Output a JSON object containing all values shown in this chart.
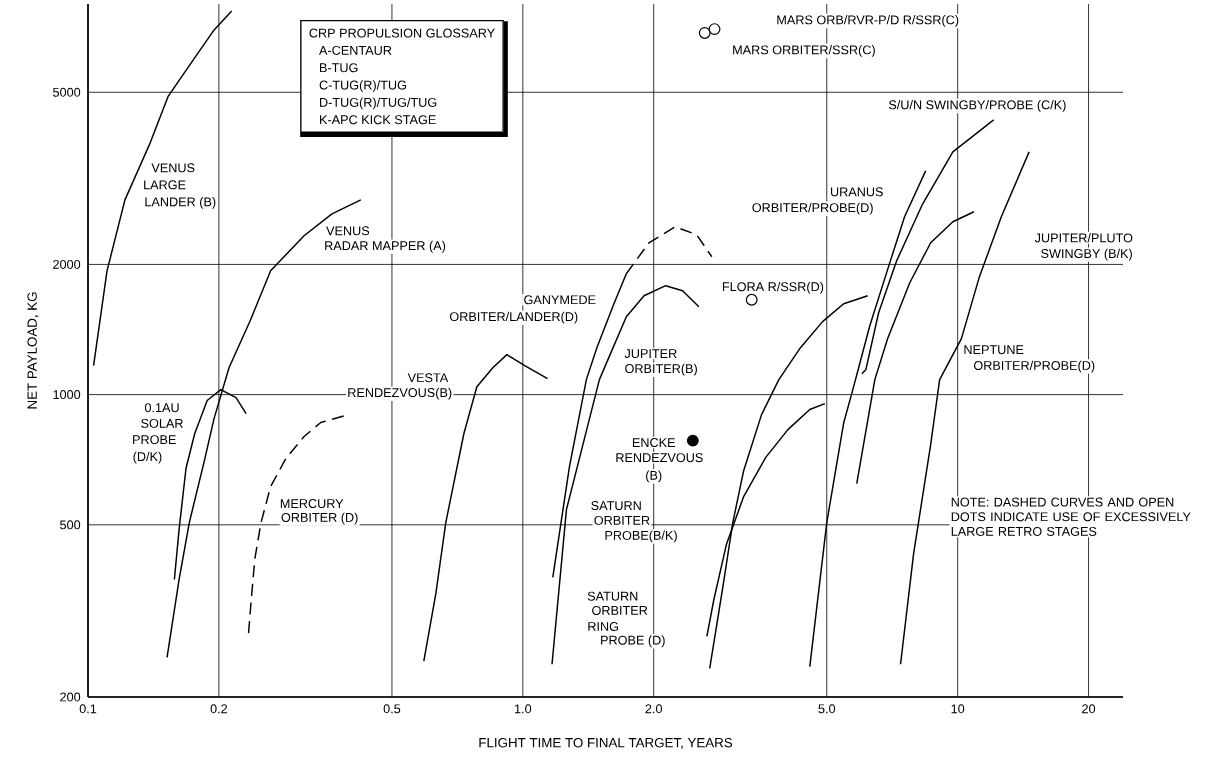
{
  "chart_data": {
    "type": "line",
    "xlabel": "FLIGHT TIME TO FINAL TARGET, YEARS",
    "ylabel": "NET PAYLOAD, KG",
    "log": "xy",
    "grid": true,
    "xlim": [
      0.1,
      24
    ],
    "ylim": [
      200,
      8000
    ],
    "xticks": [
      0.1,
      0.2,
      0.5,
      {
        "value": 1,
        "label": "1.0"
      },
      {
        "value": 2,
        "label": "2.0"
      },
      {
        "value": 5,
        "label": "5.0"
      },
      10,
      20
    ],
    "yticks": [
      200,
      500,
      1000,
      2000,
      5000
    ],
    "series": [
      {
        "color": "#000000",
        "x": [
          0.103,
          0.1106,
          0.1216,
          0.139,
          0.153,
          0.174,
          0.195,
          0.214
        ],
        "values": [
          1167,
          1933,
          2820,
          3820,
          4900,
          5910,
          6970,
          7710
        ]
      },
      {
        "color": "#000000",
        "x": [
          0.152,
          0.162,
          0.171,
          0.185,
          0.195,
          0.211,
          0.236,
          0.263,
          0.314,
          0.364,
          0.424
        ],
        "values": [
          247,
          374,
          506,
          700,
          881,
          1154,
          1482,
          1933,
          2330,
          2618,
          2820
        ]
      },
      {
        "color": "#000000",
        "x": [
          0.158,
          0.162,
          0.168,
          0.176,
          0.188,
          0.202,
          0.219,
          0.231
        ],
        "values": [
          374,
          488,
          675,
          813,
          969,
          1027,
          984,
          904
        ]
      },
      {
        "color": "#000000",
        "line_style": "dashed",
        "x": [
          0.234,
          0.238,
          0.242,
          0.25,
          0.263,
          0.285,
          0.314,
          0.343,
          0.39
        ],
        "values": [
          281,
          347,
          418,
          506,
          613,
          711,
          800,
          862,
          894
        ]
      },
      {
        "color": "#000000",
        "x": [
          0.592,
          0.631,
          0.665,
          0.732,
          0.784,
          0.853,
          0.919,
          1.01,
          1.14
        ],
        "values": [
          242,
          347,
          506,
          813,
          1043,
          1154,
          1237,
          1167,
          1089
        ]
      },
      {
        "color": "#000000",
        "x": [
          1.172,
          1.28,
          1.4,
          1.48,
          1.62,
          1.73
        ],
        "values": [
          378,
          682,
          1083,
          1284,
          1622,
          1903
        ]
      },
      {
        "color": "#000000",
        "line_style": "dashed",
        "x": [
          1.73,
          1.95,
          2.24,
          2.51,
          2.72
        ],
        "values": [
          1903,
          2244,
          2443,
          2343,
          2083
        ]
      },
      {
        "color": "#000000",
        "x": [
          1.167,
          1.26,
          1.5,
          1.58,
          1.73,
          1.9,
          2.13,
          2.33,
          2.54
        ],
        "values": [
          238,
          543,
          1083,
          1224,
          1514,
          1693,
          1786,
          1739,
          1597
        ]
      },
      {
        "color": "#000000",
        "x": [
          2.69,
          2.88,
          3.04,
          3.22,
          3.54,
          3.88,
          4.35,
          4.89,
          5.47,
          6.21
        ],
        "values": [
          233,
          356,
          506,
          667,
          899,
          1083,
          1284,
          1475,
          1622,
          1693
        ]
      },
      {
        "color": "#000000",
        "x": [
          2.65,
          2.75,
          2.94,
          3.22,
          3.62,
          4.07,
          4.57,
          4.95
        ],
        "values": [
          276,
          336,
          451,
          581,
          716,
          830,
          924,
          953
        ]
      },
      {
        "color": "#000000",
        "x": [
          4.57,
          5.0,
          5.47,
          5.74,
          6.28,
          6.9,
          7.55,
          8.44
        ],
        "values": [
          235,
          506,
          861,
          1027,
          1443,
          1945,
          2578,
          3290
        ]
      },
      {
        "color": "#000000",
        "x": [
          6.02,
          6.15,
          6.58,
          7.24,
          8.31,
          9.75,
          12.1
        ],
        "values": [
          1118,
          1142,
          1546,
          2039,
          2762,
          3641,
          4318
        ]
      },
      {
        "color": "#000000",
        "x": [
          5.86,
          6.45,
          6.9,
          7.76,
          8.67,
          9.75,
          10.9
        ],
        "values": [
          623,
          1083,
          1347,
          1814,
          2244,
          2510,
          2647
        ]
      },
      {
        "color": "#000000",
        "x": [
          7.39,
          7.92,
          8.67,
          9.09,
          10.2,
          11.2,
          12.6,
          14.6
        ],
        "values": [
          238,
          429,
          767,
          1083,
          1347,
          1862,
          2578,
          3641
        ]
      },
      {
        "type": "scatter",
        "marker": "circle",
        "color": "#000000",
        "x": [
          2.46
        ],
        "values": [
          783
        ]
      },
      {
        "type": "scatter",
        "marker": "circle",
        "color": "#ffffff",
        "x": [
          3.36,
          2.62,
          2.76
        ],
        "values": [
          1657,
          6856,
          7000
        ]
      }
    ],
    "annotations": [
      "CRP PROPULSION GLOSSARY",
      "A-CENTAUR",
      "B-TUG",
      "C-TUG(R)/TUG",
      "D-TUG(R)/TUG/TUG",
      "K-APC KICK STAGE",
      "NOTE: DASHED CURVES AND OPEN DOTS INDICATE USE OF EXCESSIVELY LARGE RETRO STAGES",
      "VENUS",
      "LARGE",
      "LANDER (B)",
      "VENUS",
      "RADAR MAPPER (A)",
      "GANYMEDE",
      "ORBITER/LANDER(D)",
      "VESTA",
      "RENDEZVOUS(B)",
      "0.1AU",
      "SOLAR",
      "PROBE",
      "(D/K)",
      "MERCURY",
      "ORBITER (D)",
      "MARS ORB/RVR-P/D R/SSR(C)",
      "MARS ORBITER/SSR(C)",
      "S/U/N SWINGBY/PROBE (C/K)",
      "URANUS",
      "ORBITER/PROBE(D)",
      "JUPITER/PLUTO",
      "SWINGBY (B/K)",
      "FLORA R/SSR(D)",
      "JUPITER",
      "ORBITER(B)",
      "NEPTUNE",
      "ORBITER/PROBE(D)",
      "ENCKE",
      "RENDEZVOUS",
      "(B)",
      "SATURN",
      "ORBITER",
      "PROBE(B/K)",
      "SATURN",
      "ORBITER",
      "RING",
      "PROBE (D)"
    ]
  }
}
